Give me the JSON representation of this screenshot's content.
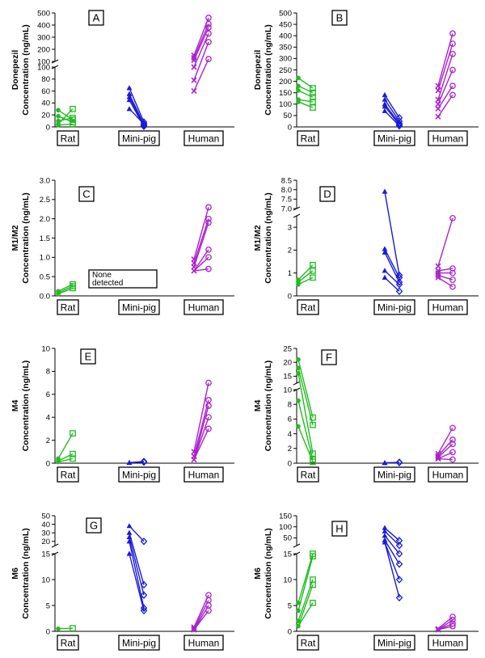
{
  "colors": {
    "rat": "#22bb22",
    "minipig": "#1a1ad6",
    "human": "#aa22cc"
  },
  "chart_data": [
    {
      "id": "A",
      "type": "scatter",
      "panel_label": "A",
      "ylabel_lines": [
        "Donepezil",
        "Concentration (ng/mL)"
      ],
      "categories": [
        "Rat",
        "Mini-pig",
        "Human"
      ],
      "ticks_lower": [
        "0",
        "20",
        "40",
        "60",
        "80",
        "100"
      ],
      "ticks_upper": [
        "100",
        "200",
        "300",
        "400",
        "500"
      ],
      "series": [
        {
          "group": "Rat",
          "pre": [
            18,
            10,
            5,
            3,
            28
          ],
          "post": [
            8,
            15,
            30,
            5,
            12
          ]
        },
        {
          "group": "Mini-pig",
          "pre": [
            65,
            55,
            50,
            45,
            30
          ],
          "post": [
            8,
            4,
            2,
            1,
            5
          ]
        },
        {
          "group": "Human",
          "pre": [
            150,
            130,
            110,
            100,
            78,
            60
          ],
          "post": [
            460,
            410,
            380,
            330,
            260,
            120
          ]
        }
      ]
    },
    {
      "id": "B",
      "type": "scatter",
      "panel_label": "B",
      "ylabel_lines": [
        "Donepezil",
        "Concentration (ng/mL)"
      ],
      "categories": [
        "Rat",
        "Mini-pig",
        "Human"
      ],
      "ticks": [
        "0",
        "50",
        "100",
        "150",
        "200",
        "250",
        "300",
        "350",
        "400",
        "450",
        "500"
      ],
      "series": [
        {
          "group": "Rat",
          "pre": [
            215,
            180,
            160,
            120,
            110
          ],
          "post": [
            170,
            150,
            130,
            110,
            85
          ]
        },
        {
          "group": "Mini-pig",
          "pre": [
            140,
            120,
            100,
            90,
            70
          ],
          "post": [
            40,
            25,
            15,
            10,
            5
          ]
        },
        {
          "group": "Human",
          "pre": [
            180,
            160,
            120,
            100,
            80,
            45
          ],
          "post": [
            410,
            365,
            320,
            250,
            180,
            140
          ]
        }
      ]
    },
    {
      "id": "C",
      "type": "scatter",
      "panel_label": "C",
      "ylabel_lines": [
        "M1/M2",
        "Concentration (ng/mL)"
      ],
      "categories": [
        "Rat",
        "Mini-pig",
        "Human"
      ],
      "ticks": [
        "0.0",
        "0.5",
        "1.0",
        "1.5",
        "2.0",
        "2.5",
        "3.0"
      ],
      "note": [
        "None",
        "detected"
      ],
      "series": [
        {
          "group": "Rat",
          "pre": [
            0.12,
            0.05,
            0.08
          ],
          "post": [
            0.3,
            0.2,
            0.25
          ]
        },
        {
          "group": "Human",
          "pre": [
            0.95,
            0.85,
            0.75,
            0.65
          ],
          "post": [
            2.3,
            2.0,
            1.9,
            1.2,
            1.0,
            0.7
          ]
        }
      ]
    },
    {
      "id": "D",
      "type": "scatter",
      "panel_label": "D",
      "ylabel_lines": [
        "M1/M2",
        "Concentration (ng/mL)"
      ],
      "categories": [
        "Rat",
        "Mini-pig",
        "Human"
      ],
      "ticks_lower": [
        "0",
        "1",
        "2",
        "3"
      ],
      "ticks_upper": [
        "7.0",
        "7.5",
        "8.0",
        "8.5"
      ],
      "series": [
        {
          "group": "Rat",
          "pre": [
            0.7,
            0.6,
            0.5
          ],
          "post": [
            1.35,
            1.1,
            0.8
          ]
        },
        {
          "group": "Mini-pig",
          "pre": [
            7.9,
            2.05,
            1.9,
            1.1,
            0.8
          ],
          "post": [
            0.9,
            0.8,
            0.6,
            0.5,
            0.2
          ]
        },
        {
          "group": "Human",
          "pre": [
            1.3,
            1.1,
            1.0,
            0.9,
            0.8
          ],
          "post": [
            3.4,
            1.2,
            1.0,
            0.7,
            0.4
          ]
        }
      ]
    },
    {
      "id": "E",
      "type": "scatter",
      "panel_label": "E",
      "ylabel_lines": [
        "M4",
        "Concentration (ng/mL)"
      ],
      "categories": [
        "Rat",
        "Mini-pig",
        "Human"
      ],
      "ticks": [
        "0",
        "2",
        "4",
        "6",
        "8",
        "10"
      ],
      "series": [
        {
          "group": "Rat",
          "pre": [
            0.4,
            0.2,
            0.1
          ],
          "post": [
            2.6,
            0.8,
            0.4
          ]
        },
        {
          "group": "Mini-pig",
          "pre": [
            0.05,
            0.03
          ],
          "post": [
            0.15,
            0.1
          ]
        },
        {
          "group": "Human",
          "pre": [
            1.0,
            0.6,
            0.3
          ],
          "post": [
            7.0,
            5.5,
            5.0,
            4.0,
            3.0
          ]
        }
      ]
    },
    {
      "id": "F",
      "type": "scatter",
      "panel_label": "F",
      "ylabel_lines": [
        "M4",
        "Concentration (ng/mL)"
      ],
      "categories": [
        "Rat",
        "Mini-pig",
        "Human"
      ],
      "ticks_lower": [
        "0",
        "2",
        "4",
        "6",
        "8",
        "10"
      ],
      "ticks_upper": [
        "15",
        "20",
        "25"
      ],
      "series": [
        {
          "group": "Rat",
          "pre": [
            21,
            18,
            16,
            8.5,
            5.0
          ],
          "post": [
            6.2,
            5.2,
            1.3,
            0.5,
            0.2
          ]
        },
        {
          "group": "Mini-pig",
          "pre": [
            0.05,
            0.03
          ],
          "post": [
            0.12,
            0.08
          ]
        },
        {
          "group": "Human",
          "pre": [
            1.3,
            1.0,
            0.8,
            0.6
          ],
          "post": [
            4.8,
            3.2,
            2.6,
            1.5,
            0.5
          ]
        }
      ]
    },
    {
      "id": "G",
      "type": "scatter",
      "panel_label": "G",
      "ylabel_lines": [
        "M6",
        "Concentration (ng/mL)"
      ],
      "categories": [
        "Rat",
        "Mini-pig",
        "Human"
      ],
      "ticks_lower": [
        "0",
        "5",
        "10",
        "15"
      ],
      "ticks_upper": [
        "20",
        "30",
        "40",
        "50"
      ],
      "series": [
        {
          "group": "Rat",
          "pre": [
            0.5
          ],
          "post": [
            0.6
          ]
        },
        {
          "group": "Mini-pig",
          "pre": [
            38,
            30,
            25,
            20,
            15
          ],
          "post": [
            20,
            9,
            7,
            4.5,
            4
          ]
        },
        {
          "group": "Human",
          "pre": [
            0.8,
            0.5,
            0.3
          ],
          "post": [
            7.0,
            6.0,
            5.0,
            4.0
          ]
        }
      ]
    },
    {
      "id": "H",
      "type": "scatter",
      "panel_label": "H",
      "ylabel_lines": [
        "M6",
        "Concentration (ng/mL)"
      ],
      "categories": [
        "Rat",
        "Mini-pig",
        "Human"
      ],
      "ticks_lower": [
        "0",
        "5",
        "10",
        "15"
      ],
      "ticks_upper": [
        "50",
        "100",
        "150"
      ],
      "series": [
        {
          "group": "Rat",
          "pre": [
            5.5,
            4.0,
            2.0,
            1.0
          ],
          "post": [
            15,
            14.5,
            10,
            9,
            5.5
          ]
        },
        {
          "group": "Mini-pig",
          "pre": [
            95,
            80,
            60,
            40,
            30
          ],
          "post": [
            38,
            16,
            15,
            13,
            10,
            6.5
          ]
        },
        {
          "group": "Human",
          "pre": [
            0.5,
            0.3
          ],
          "post": [
            2.8,
            2.2,
            1.5,
            1.0
          ]
        }
      ]
    }
  ]
}
